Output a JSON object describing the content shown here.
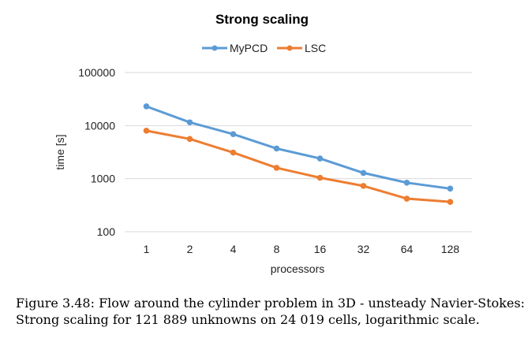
{
  "chart_data": {
    "type": "line",
    "title": "Strong scaling",
    "xlabel": "processors",
    "ylabel": "time [s]",
    "y_scale": "log",
    "ylim": [
      100,
      100000
    ],
    "yticks": [
      "100000",
      "10000",
      "1000",
      "100"
    ],
    "grid": "horizontal",
    "legend_position": "top-center",
    "categories": [
      "1",
      "2",
      "4",
      "8",
      "16",
      "32",
      "64",
      "128"
    ],
    "series": [
      {
        "name": "MyPCD",
        "color": "#5B9BD5",
        "values": [
          23000,
          11500,
          6900,
          3700,
          2400,
          1280,
          840,
          650
        ]
      },
      {
        "name": "LSC",
        "color": "#ED7D31",
        "values": [
          8000,
          5600,
          3100,
          1600,
          1040,
          730,
          420,
          365
        ]
      }
    ]
  },
  "caption": {
    "line1": "Figure 3.48: Flow around the cylinder problem in 3D - unsteady Navier-Stokes:",
    "line2": "Strong scaling for 121 889 unknowns on 24 019 cells, logarithmic scale."
  }
}
